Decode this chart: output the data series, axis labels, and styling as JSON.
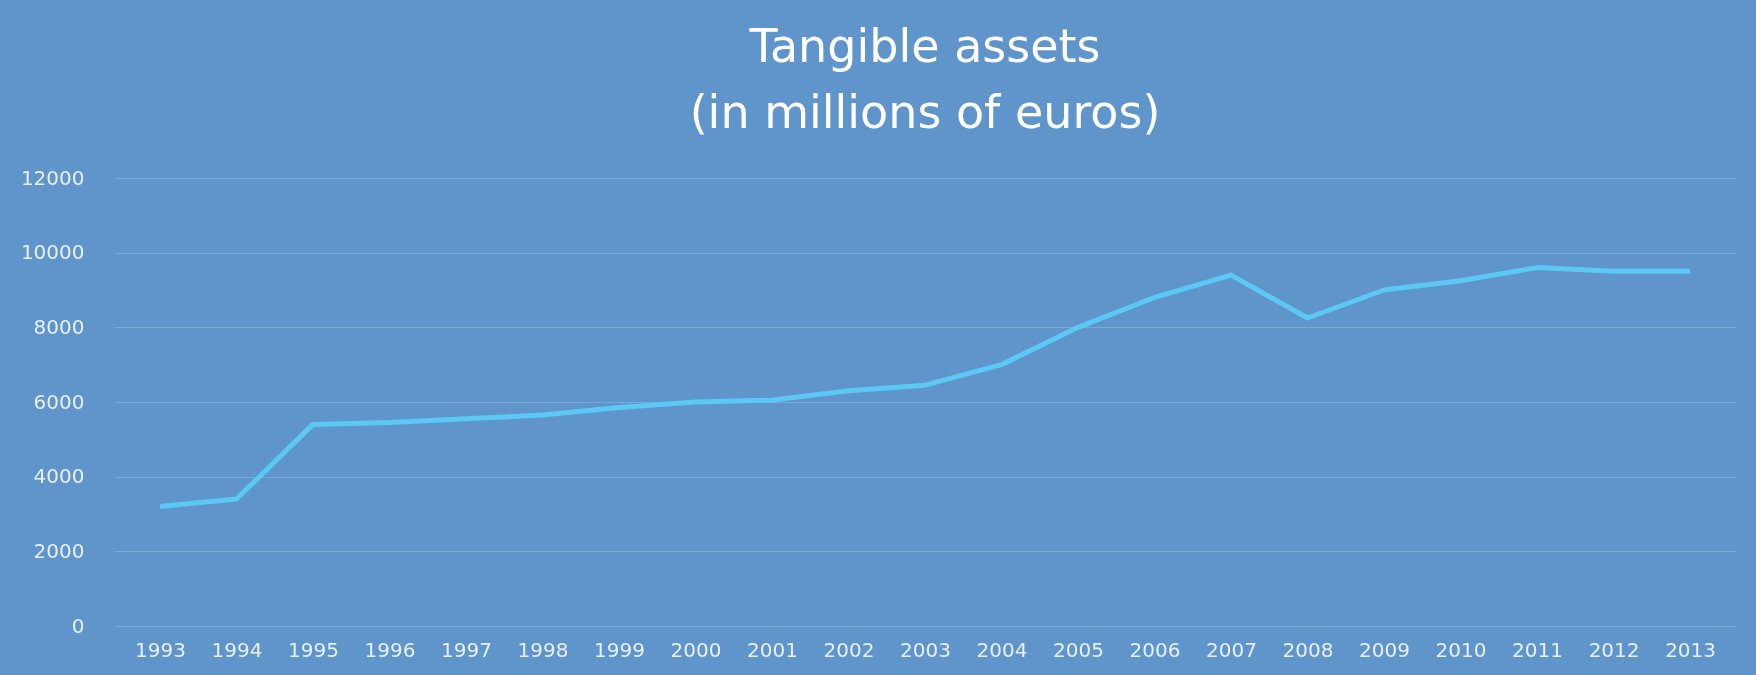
{
  "chart_data": {
    "type": "line",
    "title": [
      "Tangible assets",
      "(in millions of euros)"
    ],
    "categories": [
      "1993",
      "1994",
      "1995",
      "1996",
      "1997",
      "1998",
      "1999",
      "2000",
      "2001",
      "2002",
      "2003",
      "2004",
      "2005",
      "2006",
      "2007",
      "2008",
      "2009",
      "2010",
      "2011",
      "2012",
      "2013"
    ],
    "series": [
      {
        "color": "#5bc8f5",
        "values": [
          3200,
          3400,
          5400,
          5450,
          5550,
          5650,
          5850,
          6000,
          6050,
          6300,
          6450,
          7000,
          8000,
          8800,
          9400,
          8250,
          9000,
          9250,
          9600,
          9500,
          9500
        ]
      }
    ],
    "ylim": [
      0,
      12000
    ],
    "yticks": [
      0,
      2000,
      4000,
      6000,
      8000,
      10000,
      12000
    ],
    "grid": "y",
    "legend": false,
    "marker": "none",
    "line_style": "solid"
  }
}
